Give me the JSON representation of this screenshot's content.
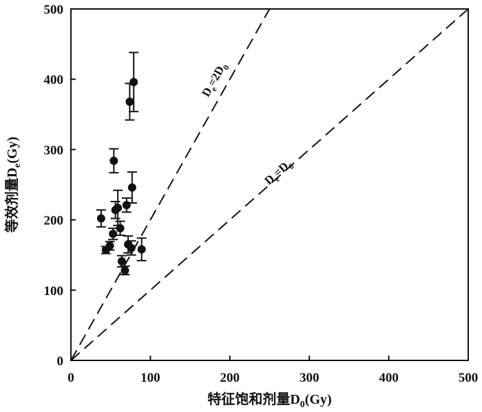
{
  "chart_data": {
    "type": "scatter",
    "title": "",
    "xlabel": "特征饱和剂量D",
    "xlabel_sub": "0",
    "xlabel_suffix": "(Gy)",
    "ylabel": "等效剂量D",
    "ylabel_sub": "e",
    "ylabel_suffix": "(Gy)",
    "xlim": [
      0,
      500
    ],
    "ylim": [
      0,
      500
    ],
    "xticks": [
      0,
      100,
      200,
      300,
      400,
      500
    ],
    "yticks": [
      0,
      100,
      200,
      300,
      400,
      500
    ],
    "grid": false,
    "legend": "none",
    "marker_color": "#111111",
    "reference_lines": [
      {
        "slope": 2,
        "label_main": "D",
        "label_sub": "e",
        "label_mid": "=2D",
        "label_sub2": "0"
      },
      {
        "slope": 1,
        "label_main": "D",
        "label_sub": "e",
        "label_mid": "=D",
        "label_sub2": "0"
      }
    ],
    "series": [
      {
        "points": [
          {
            "x": 38,
            "y": 202,
            "err": 12
          },
          {
            "x": 44,
            "y": 157,
            "err": 5
          },
          {
            "x": 49,
            "y": 163,
            "err": 6
          },
          {
            "x": 53,
            "y": 180,
            "err": 8
          },
          {
            "x": 54,
            "y": 284,
            "err": 17
          },
          {
            "x": 56,
            "y": 214,
            "err": 12
          },
          {
            "x": 59,
            "y": 217,
            "err": 25
          },
          {
            "x": 62,
            "y": 188,
            "err": 10
          },
          {
            "x": 64,
            "y": 141,
            "err": 8
          },
          {
            "x": 68,
            "y": 128,
            "err": 6
          },
          {
            "x": 70,
            "y": 221,
            "err": 10
          },
          {
            "x": 72,
            "y": 165,
            "err": 12
          },
          {
            "x": 74,
            "y": 368,
            "err": 26
          },
          {
            "x": 77,
            "y": 246,
            "err": 22
          },
          {
            "x": 76,
            "y": 160,
            "err": 10
          },
          {
            "x": 79,
            "y": 396,
            "err": 42
          },
          {
            "x": 89,
            "y": 158,
            "err": 16
          }
        ]
      }
    ]
  }
}
